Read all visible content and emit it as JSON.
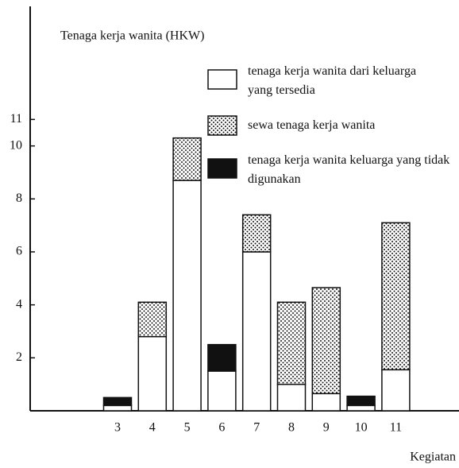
{
  "chart_data": {
    "type": "stacked_bar",
    "ylabel": "Tenaga kerja wanita (HKW)",
    "xlabel": "Kegiatan",
    "categories": [
      "3",
      "4",
      "5",
      "6",
      "7",
      "8",
      "9",
      "10",
      "11"
    ],
    "series": [
      {
        "name": "tenaga kerja wanita dari keluarga yang tersedia",
        "color": "#ffffff",
        "values": [
          0.2,
          2.8,
          8.7,
          1.5,
          6.0,
          1.0,
          0.65,
          0.2,
          1.55
        ]
      },
      {
        "name": "sewa tenaga kerja wanita",
        "color": "dotted",
        "values": [
          null,
          1.3,
          1.6,
          null,
          1.4,
          3.1,
          4.0,
          null,
          5.55
        ]
      },
      {
        "name": "tenaga kerja wanita keluarga yang tidak digunakan",
        "color": "#111111",
        "values": [
          0.3,
          null,
          null,
          1.0,
          null,
          null,
          null,
          0.35,
          null
        ]
      }
    ],
    "ylim": [
      0,
      15
    ],
    "yticks": [
      2,
      4,
      6,
      8,
      10,
      11
    ]
  }
}
